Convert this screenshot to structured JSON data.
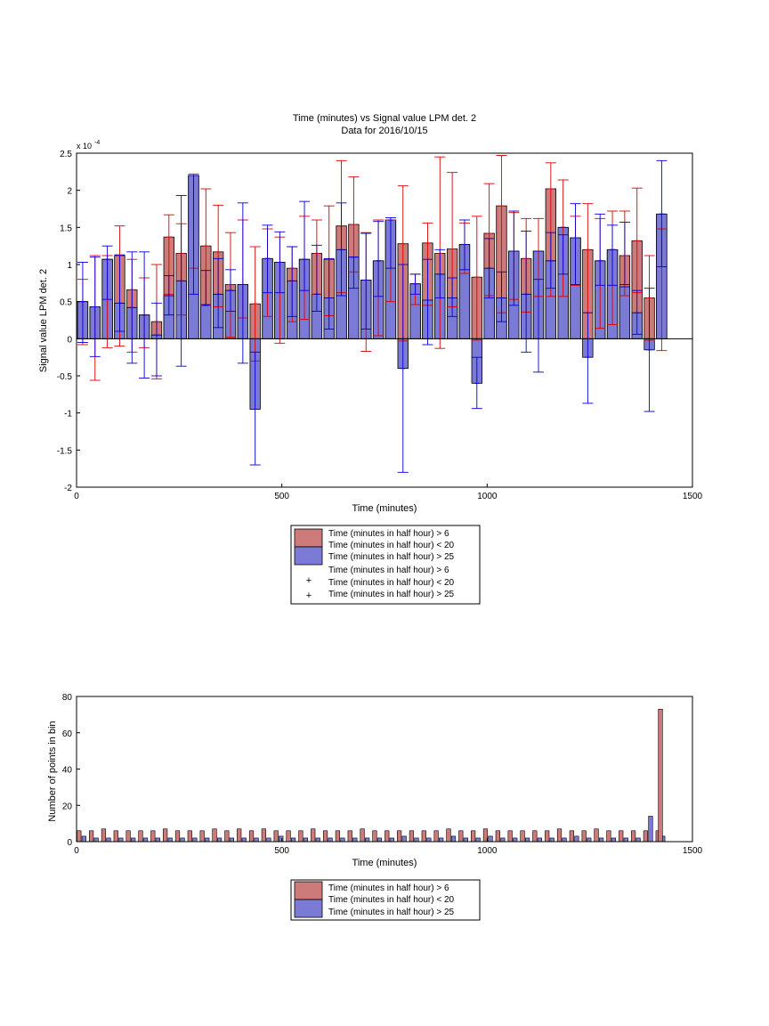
{
  "figure": {
    "title": "Time (minutes) vs Signal value LPM det. 2",
    "subtitle": "Data for 2016/10/15"
  },
  "chart_data": [
    {
      "type": "bar",
      "title": "Time (minutes) vs Signal value LPM det. 2",
      "subtitle": "Data for 2016/10/15",
      "xlabel": "Time (minutes)",
      "ylabel": "Signal value LPM det. 2",
      "y_exponent_label": "x 10^-4",
      "xlim": [
        0,
        1500
      ],
      "ylim": [
        -2,
        2.5
      ],
      "xticks": [
        0,
        500,
        1000,
        1500
      ],
      "yticks": [
        -2,
        -1.5,
        -1,
        -0.5,
        0,
        0.5,
        1,
        1.5,
        2,
        2.5
      ],
      "ytick_labels": [
        "-2",
        "-1.5",
        "-1",
        "-0.5",
        "0",
        "0.5",
        "1",
        "1.5",
        "2",
        "2.5"
      ],
      "grid": false,
      "legend_position": "below",
      "legend": [
        "Time (minutes in half hour) > 6",
        "Time (minutes in half hour) < 20",
        "Time (minutes in half hour) > 25",
        "Time (minutes in half hour) > 6",
        "Time (minutes in half hour) < 20",
        "Time (minutes in half hour) > 25"
      ],
      "series": [
        {
          "color": "#cc7a7a",
          "error_color": "#dd0000",
          "x": [
            15,
            45,
            75,
            105,
            135,
            165,
            195,
            225,
            255,
            285,
            315,
            345,
            375,
            405,
            435,
            465,
            495,
            525,
            555,
            585,
            615,
            645,
            675,
            705,
            735,
            765,
            795,
            825,
            855,
            885,
            915,
            945,
            975,
            1005,
            1035,
            1065,
            1095,
            1125,
            1155,
            1185,
            1215,
            1245,
            1275,
            1305,
            1335,
            1365,
            1395,
            1425
          ],
          "values": [
            0.5,
            0.43,
            1.07,
            1.12,
            0.66,
            0.32,
            0.23,
            1.37,
            1.15,
            2.2,
            1.25,
            1.17,
            0.73,
            0.73,
            0.47,
            1.08,
            1.03,
            0.95,
            1.07,
            1.15,
            1.07,
            1.52,
            1.54,
            0.79,
            1.05,
            1.6,
            1.28,
            0.74,
            1.29,
            1.15,
            1.21,
            1.27,
            0.83,
            1.42,
            1.79,
            1.18,
            1.08,
            1.18,
            2.02,
            1.5,
            1.36,
            1.2,
            1.05,
            1.2,
            1.12,
            1.32,
            0.55,
            1.68
          ],
          "err_low": [
            -0.08,
            -0.56,
            -0.12,
            -0.1,
            -0.18,
            -0.12,
            -0.54,
            0.6,
            0.32,
            0.95,
            0.45,
            0.43,
            0.02,
            0.28,
            -0.3,
            0.3,
            -0.06,
            0.23,
            0.26,
            0.6,
            0.31,
            0.62,
            0.9,
            -0.17,
            0.04,
            0.5,
            -0.03,
            0.46,
            0.45,
            -0.13,
            0.43,
            0.88,
            -0.02,
            0.58,
            0.35,
            0.53,
            0.36,
            0.57,
            0.57,
            0.57,
            0.72,
            0.35,
            0.14,
            0.19,
            0.58,
            0.62,
            -0.02,
            -0.16
          ],
          "err_high": [
            0.8,
            1.12,
            1.12,
            1.52,
            1.07,
            0.82,
            1.0,
            1.67,
            1.55,
            2.22,
            2.02,
            1.8,
            1.43,
            1.6,
            1.24,
            1.48,
            1.37,
            1.24,
            1.65,
            1.6,
            1.79,
            2.4,
            2.18,
            1.43,
            1.6,
            1.6,
            2.06,
            0.87,
            1.56,
            2.45,
            2.24,
            1.56,
            1.65,
            2.09,
            2.47,
            1.7,
            1.62,
            1.62,
            2.37,
            2.14,
            1.65,
            1.82,
            1.62,
            1.72,
            1.72,
            2.03,
            1.12,
            1.48
          ]
        },
        {
          "color": "#7b7bd6",
          "error_color": "#0000dd",
          "x": [
            15,
            45,
            75,
            105,
            135,
            165,
            195,
            225,
            255,
            285,
            315,
            345,
            375,
            405,
            435,
            465,
            495,
            525,
            555,
            585,
            615,
            645,
            675,
            705,
            735,
            765,
            795,
            825,
            855,
            885,
            915,
            945,
            975,
            1005,
            1035,
            1065,
            1095,
            1125,
            1155,
            1185,
            1215,
            1245,
            1275,
            1305,
            1335,
            1365,
            1395,
            1425
          ],
          "values": [
            0.5,
            0.43,
            1.07,
            0.48,
            0.42,
            0.32,
            0.05,
            0.58,
            0.78,
            2.2,
            0.45,
            0.6,
            0.65,
            0.73,
            -0.95,
            1.08,
            1.03,
            0.78,
            1.07,
            0.6,
            0.55,
            1.2,
            1.1,
            0.79,
            1.05,
            1.6,
            -0.4,
            0.74,
            0.52,
            0.87,
            0.55,
            1.27,
            -0.6,
            0.95,
            0.55,
            1.18,
            0.6,
            1.18,
            1.05,
            1.5,
            1.36,
            -0.25,
            1.05,
            1.2,
            0.7,
            0.35,
            -0.15,
            1.68
          ],
          "err_low": [
            -0.05,
            -0.24,
            0.53,
            0.1,
            -0.33,
            -0.53,
            -0.5,
            0.32,
            -0.37,
            0.6,
            0.46,
            0.15,
            0.37,
            -0.33,
            -1.7,
            0.62,
            0.62,
            0.3,
            0.65,
            0.37,
            0.13,
            0.58,
            0.68,
            0.13,
            0.57,
            0.95,
            -1.8,
            0.6,
            -0.08,
            0.55,
            0.3,
            0.93,
            -0.94,
            0.55,
            0.23,
            0.45,
            -0.18,
            -0.45,
            0.68,
            0.87,
            0.73,
            -0.87,
            0.72,
            0.72,
            0.73,
            0.06,
            -0.98,
            0.97
          ],
          "err_high": [
            1.03,
            1.1,
            1.25,
            1.13,
            1.17,
            1.17,
            0.48,
            0.85,
            1.93,
            2.2,
            0.92,
            1.08,
            0.93,
            1.83,
            -0.18,
            1.53,
            1.44,
            1.24,
            1.85,
            1.26,
            1.08,
            1.83,
            1.1,
            1.42,
            1.58,
            1.63,
            1.0,
            0.87,
            1.07,
            1.2,
            0.82,
            1.6,
            -0.25,
            1.35,
            0.9,
            1.72,
            1.45,
            0.8,
            1.43,
            1.4,
            1.82,
            0.35,
            1.68,
            1.53,
            1.57,
            0.65,
            0.68,
            2.4
          ]
        }
      ]
    },
    {
      "type": "bar",
      "xlabel": "Time (minutes)",
      "ylabel": "Number of points in bin",
      "xlim": [
        0,
        1500
      ],
      "ylim": [
        0,
        80
      ],
      "xticks": [
        0,
        500,
        1000,
        1500
      ],
      "yticks": [
        0,
        20,
        40,
        60,
        80
      ],
      "grid": false,
      "legend_position": "below",
      "legend": [
        "Time (minutes in half hour) > 6",
        "Time (minutes in half hour) < 20",
        "Time (minutes in half hour) > 25"
      ],
      "series": [
        {
          "color": "#cc7a7a",
          "x": [
            6,
            36,
            66,
            96,
            126,
            156,
            186,
            216,
            246,
            276,
            306,
            336,
            366,
            396,
            426,
            456,
            486,
            516,
            546,
            576,
            606,
            636,
            666,
            696,
            726,
            756,
            786,
            816,
            846,
            876,
            906,
            936,
            966,
            996,
            1026,
            1056,
            1086,
            1116,
            1146,
            1176,
            1206,
            1236,
            1266,
            1296,
            1326,
            1356,
            1386,
            1416
          ],
          "values": [
            6,
            6,
            7,
            6,
            6,
            6,
            6,
            7,
            6,
            6,
            6,
            7,
            6,
            7,
            6,
            7,
            6,
            6,
            6,
            7,
            6,
            6,
            6,
            7,
            6,
            6,
            6,
            6,
            6,
            6,
            7,
            6,
            6,
            7,
            6,
            6,
            6,
            6,
            6,
            7,
            6,
            6,
            7,
            6,
            6,
            6,
            6,
            6
          ]
        },
        {
          "color": "#7b7bd6",
          "x": [
            18,
            48,
            78,
            108,
            138,
            168,
            198,
            228,
            258,
            288,
            318,
            348,
            378,
            408,
            438,
            468,
            498,
            528,
            558,
            588,
            618,
            648,
            678,
            708,
            738,
            768,
            798,
            828,
            858,
            888,
            918,
            948,
            978,
            1008,
            1038,
            1068,
            1098,
            1128,
            1158,
            1188,
            1218,
            1248,
            1278,
            1308,
            1338,
            1368,
            1398,
            1428
          ],
          "values": [
            3,
            2,
            2,
            2,
            2,
            2,
            2,
            2,
            2,
            2,
            2,
            2,
            2,
            2,
            2,
            2,
            3,
            2,
            2,
            2,
            2,
            2,
            2,
            2,
            2,
            2,
            3,
            2,
            2,
            2,
            3,
            2,
            2,
            3,
            2,
            2,
            2,
            2,
            2,
            2,
            3,
            2,
            2,
            2,
            2,
            2,
            14,
            3
          ]
        },
        {
          "color": "#cc7a7a",
          "x": [
            1422
          ],
          "values": [
            73
          ]
        }
      ]
    }
  ]
}
